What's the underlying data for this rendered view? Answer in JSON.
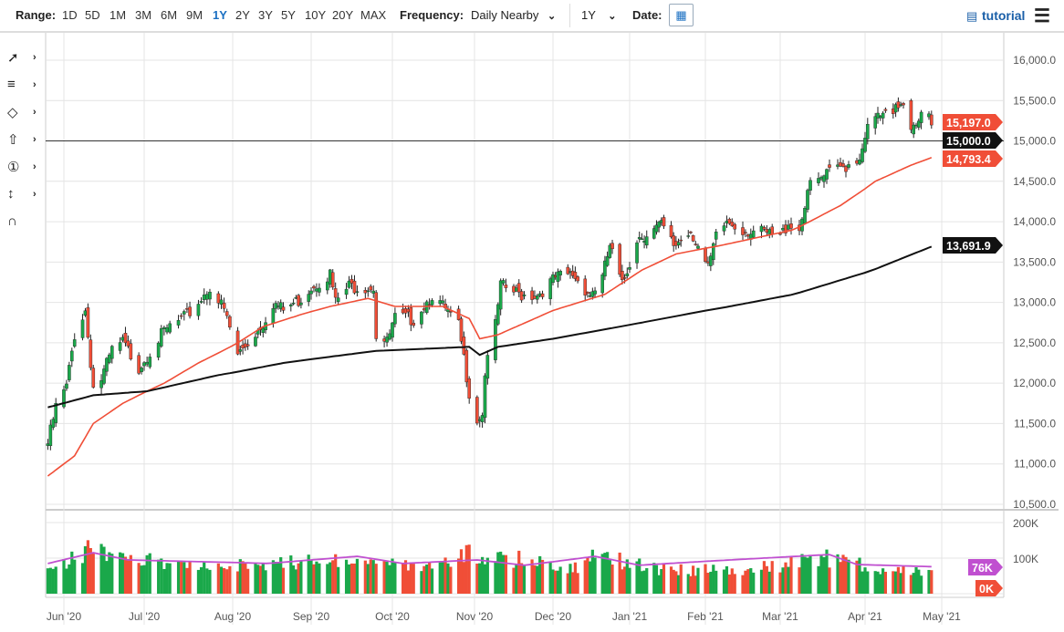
{
  "toolbar": {
    "range_label": "Range:",
    "ranges": [
      "1D",
      "5D",
      "1M",
      "3M",
      "6M",
      "9M",
      "1Y",
      "2Y",
      "3Y",
      "5Y",
      "10Y",
      "20Y",
      "MAX"
    ],
    "active_range": "1Y",
    "frequency_label": "Frequency:",
    "frequency_value": "Daily Nearby",
    "period_value": "1Y",
    "date_label": "Date:",
    "tutorial_label": "tutorial",
    "icons": [
      "calendar-icon",
      "film-icon",
      "menu-icon"
    ]
  },
  "left_tools": [
    "trend-line-icon",
    "fibonacci-icon",
    "shapes-icon",
    "arrow-up-icon",
    "numbered-marker-icon",
    "measure-icon",
    "magnet-icon"
  ],
  "chart_data": {
    "type": "candlestick",
    "price_axis": {
      "ticks": [
        "16,000.0",
        "15,500.0",
        "15,000.0",
        "14,500.0",
        "14,000.0",
        "13,500.0",
        "13,000.0",
        "12,500.0",
        "12,000.0",
        "11,500.0",
        "11,000.0",
        "10,500.0"
      ],
      "range": [
        10500,
        16000
      ]
    },
    "x_ticks": [
      "Jun '20",
      "Jul '20",
      "Aug '20",
      "Sep '20",
      "Oct '20",
      "Nov '20",
      "Dec '20",
      "Jan '21",
      "Feb '21",
      "Mar '21",
      "Apr '21",
      "May '21"
    ],
    "volume_axis": {
      "ticks": [
        "200K",
        "100K"
      ],
      "range": [
        0,
        200
      ]
    },
    "price_labels": [
      {
        "text": "15,197.0",
        "value": 15197,
        "color": "#f04e37"
      },
      {
        "text": "15,000.0",
        "value": 15000,
        "color": "#111111"
      },
      {
        "text": "14,793.4",
        "value": 14793.4,
        "color": "#f04e37"
      },
      {
        "text": "13,691.9",
        "value": 13691.9,
        "color": "#111111"
      }
    ],
    "horizontal_line": 15000,
    "volume_labels": [
      {
        "text": "76K",
        "value": 76,
        "color": "#c050d0"
      },
      {
        "text": "0K",
        "value": 0,
        "color": "#f04e37"
      }
    ],
    "colors": {
      "up": "#1aa84a",
      "down": "#f04e37",
      "ma50": "#f04e37",
      "ma200": "#111111",
      "volume_avg": "#c050d0",
      "grid": "#e4e4e4"
    },
    "close_anchors": [
      [
        "2020-05-26",
        11250
      ],
      [
        "2020-05-29",
        11700
      ],
      [
        "2020-06-02",
        11950
      ],
      [
        "2020-06-05",
        12600
      ],
      [
        "2020-06-09",
        12900
      ],
      [
        "2020-06-12",
        11950
      ],
      [
        "2020-06-15",
        12050
      ],
      [
        "2020-06-19",
        12400
      ],
      [
        "2020-06-23",
        12500
      ],
      [
        "2020-06-29",
        12200
      ],
      [
        "2020-07-06",
        12550
      ],
      [
        "2020-07-10",
        12700
      ],
      [
        "2020-07-15",
        12800
      ],
      [
        "2020-07-20",
        13000
      ],
      [
        "2020-07-24",
        13200
      ],
      [
        "2020-07-29",
        12900
      ],
      [
        "2020-08-03",
        12350
      ],
      [
        "2020-08-07",
        12500
      ],
      [
        "2020-08-13",
        12750
      ],
      [
        "2020-08-17",
        13000
      ],
      [
        "2020-08-21",
        12900
      ],
      [
        "2020-08-28",
        13050
      ],
      [
        "2020-09-01",
        13200
      ],
      [
        "2020-09-08",
        13350
      ],
      [
        "2020-09-10",
        13000
      ],
      [
        "2020-09-15",
        13200
      ],
      [
        "2020-09-24",
        13200
      ],
      [
        "2020-09-25",
        12600
      ],
      [
        "2020-09-29",
        12500
      ],
      [
        "2020-10-02",
        12800
      ],
      [
        "2020-10-09",
        12800
      ],
      [
        "2020-10-16",
        13100
      ],
      [
        "2020-10-21",
        12900
      ],
      [
        "2020-10-26",
        12700
      ],
      [
        "2020-10-28",
        12300
      ],
      [
        "2020-10-30",
        11900
      ],
      [
        "2020-11-02",
        11550
      ],
      [
        "2020-11-04",
        11650
      ],
      [
        "2020-11-05",
        12100
      ],
      [
        "2020-11-06",
        12400
      ],
      [
        "2020-11-09",
        12700
      ],
      [
        "2020-11-11",
        13200
      ],
      [
        "2020-11-18",
        13100
      ],
      [
        "2020-11-25",
        13100
      ],
      [
        "2020-12-02",
        13300
      ],
      [
        "2020-12-09",
        13350
      ],
      [
        "2020-12-16",
        13100
      ],
      [
        "2020-12-21",
        13300
      ],
      [
        "2020-12-24",
        13700
      ],
      [
        "2020-12-29",
        13200
      ],
      [
        "2021-01-04",
        13800
      ],
      [
        "2021-01-11",
        13900
      ],
      [
        "2021-01-14",
        13950
      ],
      [
        "2021-01-19",
        13700
      ],
      [
        "2021-01-26",
        13900
      ],
      [
        "2021-01-29",
        13700
      ],
      [
        "2021-02-02",
        13400
      ],
      [
        "2021-02-05",
        13800
      ],
      [
        "2021-02-09",
        14000
      ],
      [
        "2021-02-16",
        13900
      ],
      [
        "2021-02-23",
        13850
      ],
      [
        "2021-03-01",
        13800
      ],
      [
        "2021-03-04",
        14000
      ],
      [
        "2021-03-08",
        13900
      ],
      [
        "2021-03-11",
        14400
      ],
      [
        "2021-03-15",
        14500
      ],
      [
        "2021-03-19",
        14600
      ],
      [
        "2021-03-25",
        14700
      ],
      [
        "2021-03-30",
        14800
      ],
      [
        "2021-04-01",
        15100
      ],
      [
        "2021-04-06",
        15300
      ],
      [
        "2021-04-12",
        15300
      ],
      [
        "2021-04-14",
        15450
      ],
      [
        "2021-04-16",
        15500
      ],
      [
        "2021-04-19",
        15200
      ],
      [
        "2021-04-22",
        15300
      ],
      [
        "2021-04-26",
        15300
      ],
      [
        "2021-04-27",
        15197
      ]
    ],
    "ma50_anchors": [
      [
        "2020-05-26",
        10850
      ],
      [
        "2020-06-05",
        11100
      ],
      [
        "2020-06-12",
        11500
      ],
      [
        "2020-06-23",
        11750
      ],
      [
        "2020-07-08",
        12000
      ],
      [
        "2020-07-20",
        12250
      ],
      [
        "2020-08-03",
        12500
      ],
      [
        "2020-08-13",
        12700
      ],
      [
        "2020-08-28",
        12850
      ],
      [
        "2020-09-08",
        12950
      ],
      [
        "2020-09-22",
        13050
      ],
      [
        "2020-10-02",
        12950
      ],
      [
        "2020-10-20",
        12950
      ],
      [
        "2020-10-30",
        12800
      ],
      [
        "2020-11-03",
        12550
      ],
      [
        "2020-11-10",
        12600
      ],
      [
        "2020-12-01",
        12900
      ],
      [
        "2020-12-22",
        13100
      ],
      [
        "2021-01-06",
        13400
      ],
      [
        "2021-01-20",
        13600
      ],
      [
        "2021-02-06",
        13700
      ],
      [
        "2021-02-20",
        13800
      ],
      [
        "2021-03-06",
        13900
      ],
      [
        "2021-03-23",
        14200
      ],
      [
        "2021-04-05",
        14500
      ],
      [
        "2021-04-19",
        14700
      ],
      [
        "2021-04-27",
        14793.4
      ]
    ],
    "ma200_anchors": [
      [
        "2020-05-26",
        11700
      ],
      [
        "2020-06-12",
        11850
      ],
      [
        "2020-07-02",
        11900
      ],
      [
        "2020-07-27",
        12100
      ],
      [
        "2020-08-21",
        12250
      ],
      [
        "2020-09-25",
        12400
      ],
      [
        "2020-10-30",
        12450
      ],
      [
        "2020-11-03",
        12350
      ],
      [
        "2020-11-10",
        12450
      ],
      [
        "2020-12-01",
        12550
      ],
      [
        "2021-01-06",
        12750
      ],
      [
        "2021-02-10",
        12950
      ],
      [
        "2021-03-06",
        13100
      ],
      [
        "2021-04-04",
        13400
      ],
      [
        "2021-04-27",
        13691.9
      ]
    ],
    "volume_anchors": [
      [
        "2020-05-26",
        90
      ],
      [
        "2020-06-05",
        100
      ],
      [
        "2020-06-12",
        150
      ],
      [
        "2020-06-20",
        100
      ],
      [
        "2020-07-15",
        90
      ],
      [
        "2020-08-05",
        85
      ],
      [
        "2020-09-04",
        95
      ],
      [
        "2020-09-18",
        100
      ],
      [
        "2020-10-15",
        80
      ],
      [
        "2020-10-30",
        120
      ],
      [
        "2020-11-10",
        110
      ],
      [
        "2020-12-10",
        75
      ],
      [
        "2020-12-18",
        115
      ],
      [
        "2021-01-15",
        70
      ],
      [
        "2021-02-15",
        70
      ],
      [
        "2021-03-19",
        105
      ],
      [
        "2021-04-10",
        65
      ],
      [
        "2021-04-27",
        70
      ]
    ],
    "volume_avg_anchors": [
      [
        "2020-05-26",
        85
      ],
      [
        "2020-06-12",
        115
      ],
      [
        "2020-06-25",
        95
      ],
      [
        "2020-08-15",
        85
      ],
      [
        "2020-09-18",
        105
      ],
      [
        "2020-10-05",
        85
      ],
      [
        "2020-11-02",
        95
      ],
      [
        "2020-11-20",
        80
      ],
      [
        "2020-12-18",
        105
      ],
      [
        "2021-01-05",
        80
      ],
      [
        "2021-03-19",
        110
      ],
      [
        "2021-03-29",
        82
      ],
      [
        "2021-04-27",
        76
      ]
    ]
  }
}
